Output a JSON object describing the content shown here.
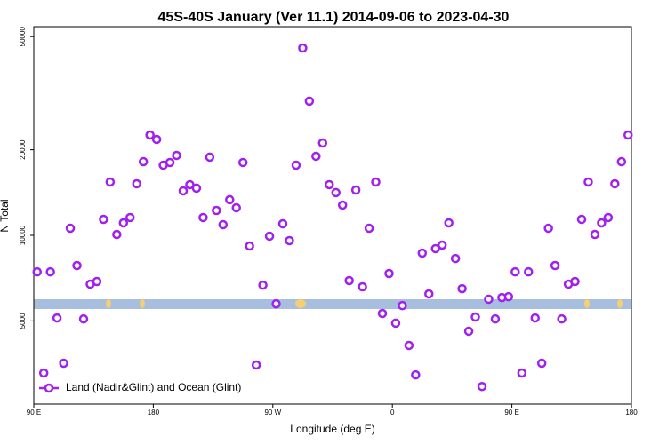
{
  "chart_data": {
    "type": "scatter",
    "title": "45S-40S January (Ver 11.1)   2014-09-06 to 2023-04-30",
    "x_label": "Longitude (deg E)",
    "y_label": "N Total",
    "log_y": true,
    "legend": "bottom-left",
    "xlim": [
      90,
      540
    ],
    "xticks": [
      {
        "value": 90,
        "label": "90 E"
      },
      180,
      {
        "value": 270,
        "label": "90 W"
      },
      {
        "value": 360,
        "label": "0"
      },
      {
        "value": 450,
        "label": "90 E"
      },
      {
        "value": 540,
        "label": "180"
      }
    ],
    "ylim": [
      2550,
      54200
    ],
    "yticks": [
      5000,
      10000,
      20000,
      50000
    ],
    "x": [
      92.5,
      97.5,
      102.5,
      107.5,
      112.5,
      117.5,
      122.5,
      127.5,
      132.5,
      137.5,
      142.5,
      147.5,
      152.5,
      157.5,
      162.5,
      167.5,
      172.5,
      177.5,
      182.5,
      187.5,
      192.5,
      197.5,
      202.5,
      207.5,
      212.5,
      217.5,
      222.5,
      227.5,
      232.5,
      237.5,
      242.5,
      247.5,
      252.5,
      257.5,
      262.5,
      267.5,
      272.5,
      277.5,
      282.5,
      287.5,
      292.5,
      297.5,
      302.5,
      307.5,
      312.5,
      317.5,
      322.5,
      327.5,
      332.5,
      337.5,
      342.5,
      347.5,
      352.5,
      357.5,
      362.5,
      367.5,
      372.5,
      377.5,
      382.5,
      387.5,
      392.5,
      397.5,
      402.5,
      407.5,
      412.5,
      417.5,
      422.5,
      427.5,
      432.5,
      437.5,
      442.5,
      447.5,
      452.5,
      457.5,
      462.5,
      467.5,
      472.5,
      477.5,
      482.5,
      487.5,
      492.5,
      497.5,
      502.5,
      507.5,
      512.5,
      517.5,
      522.5,
      527.5,
      532.5,
      537.5
    ],
    "series": [
      {
        "name": "Land (Nadir&Glint) and Ocean (Glint)",
        "color": "#a020f0",
        "values": [
          7440,
          3280,
          7440,
          5120,
          3550,
          10590,
          7830,
          5080,
          6730,
          6880,
          11380,
          15400,
          10070,
          11060,
          11550,
          15180,
          18160,
          22540,
          21750,
          17650,
          18040,
          19110,
          14330,
          15070,
          14650,
          11550,
          18840,
          12230,
          10900,
          13340,
          12500,
          18040,
          9170,
          3500,
          6680,
          9930,
          5740,
          10980,
          9580,
          17650,
          45600,
          29650,
          18970,
          21130,
          15070,
          14130,
          12770,
          6930,
          14430,
          6590,
          10590,
          15400,
          5310,
          7340,
          4910,
          5660,
          4100,
          3230,
          8660,
          6220,
          8980,
          9240,
          11060,
          8290,
          6490,
          4600,
          5160,
          2940,
          5960,
          5080,
          6040,
          6080,
          7440,
          3280,
          7440,
          5120,
          3550,
          10590,
          7830,
          5080,
          6730,
          6880,
          11380,
          15400,
          10070,
          11060,
          11550,
          15180,
          18160,
          22540
        ]
      }
    ]
  }
}
